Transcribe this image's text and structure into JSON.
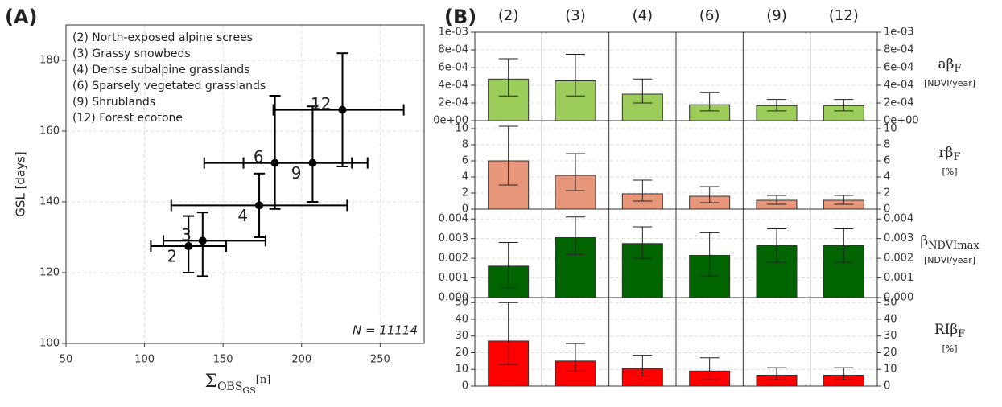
{
  "chart_data": [
    {
      "type": "errorscatter",
      "panel_label": "(A)",
      "y_label": "GSL [days]",
      "x_label_main": "Σ",
      "x_label_sub": "OBS",
      "x_label_subsub": "GS",
      "x_label_unit": "[n]",
      "xlim": [
        50,
        278
      ],
      "xticks": [
        50,
        100,
        150,
        200,
        250
      ],
      "ylim": [
        100,
        190
      ],
      "yticks": [
        100,
        120,
        140,
        160,
        180
      ],
      "grid": true,
      "color": "#000000",
      "legend": [
        "(2) North-exposed alpine screes",
        "(3) Grassy snowbeds",
        "(4) Dense subalpine grasslands",
        "(6) Sparsely vegetated grasslands",
        "(9) Shrublands",
        "(12) Forest ecotone"
      ],
      "annotation": "N = 11114",
      "points": [
        {
          "label": "2",
          "x": 128,
          "y": 127.5,
          "x_low": 104,
          "x_high": 152,
          "y_low": 120,
          "y_high": 136
        },
        {
          "label": "3",
          "x": 137,
          "y": 129,
          "x_low": 112,
          "x_high": 177,
          "y_low": 119,
          "y_high": 137
        },
        {
          "label": "4",
          "x": 173,
          "y": 139,
          "x_low": 117,
          "x_high": 229,
          "y_low": 130,
          "y_high": 148
        },
        {
          "label": "6",
          "x": 183,
          "y": 151,
          "x_low": 138,
          "x_high": 232,
          "y_low": 138,
          "y_high": 170
        },
        {
          "label": "9",
          "x": 207,
          "y": 151,
          "x_low": 163,
          "x_high": 242,
          "y_low": 140,
          "y_high": 167
        },
        {
          "label": "12",
          "x": 226,
          "y": 166,
          "x_low": 182,
          "x_high": 265,
          "y_low": 150,
          "y_high": 182
        }
      ]
    },
    {
      "type": "bargrid",
      "panel_label": "(B)",
      "categories": [
        "(2)",
        "(3)",
        "(4)",
        "(6)",
        "(9)",
        "(12)"
      ],
      "rows": [
        {
          "label": "aβ",
          "label_sub": "F",
          "unit": "[NDVI/year]",
          "color": "#9ccc5a",
          "values": [
            0.00047,
            0.00045,
            0.0003,
            0.00018,
            0.00017,
            0.00017
          ],
          "err_low": [
            0.00028,
            0.00028,
            0.0002,
            0.00011,
            0.00011,
            0.00011
          ],
          "err_high": [
            0.0007,
            0.00075,
            0.00047,
            0.00032,
            0.00024,
            0.00024
          ],
          "ylim": [
            0,
            0.001
          ],
          "yticks": [
            {
              "value": 0,
              "label": "0e+00"
            },
            {
              "value": 0.0002,
              "label": "2e-04"
            },
            {
              "value": 0.0004,
              "label": "4e-04"
            },
            {
              "value": 0.0006,
              "label": "6e-04"
            },
            {
              "value": 0.0008,
              "label": "8e-04"
            },
            {
              "value": 0.001,
              "label": "1e-03"
            }
          ],
          "y2ticks": [
            {
              "value": 0,
              "label": "0e+00"
            },
            {
              "value": 0.0002,
              "label": "2e-04"
            },
            {
              "value": 0.0004,
              "label": "4e-04"
            },
            {
              "value": 0.0006,
              "label": "6e-04"
            },
            {
              "value": 0.0008,
              "label": "8e-04"
            },
            {
              "value": 0.001,
              "label": "1e-03"
            }
          ]
        },
        {
          "label": "rβ",
          "label_sub": "F",
          "unit": "[%]",
          "color": "#e8967a",
          "values": [
            6,
            4.2,
            1.9,
            1.6,
            1.1,
            1.1
          ],
          "err_low": [
            3,
            2.3,
            1,
            0.8,
            0.6,
            0.6
          ],
          "err_high": [
            10.3,
            6.9,
            3.6,
            2.8,
            1.7,
            1.7
          ],
          "ylim": [
            0,
            11
          ],
          "yticks": [
            0,
            2,
            4,
            6,
            8,
            10
          ],
          "y2ticks": [
            0,
            2,
            4,
            6,
            8,
            10
          ]
        },
        {
          "label": "β",
          "label_sub": "NDVImax",
          "unit": "[NDVI/year]",
          "color": "#006400",
          "values": [
            0.0016,
            0.00305,
            0.00275,
            0.00215,
            0.00265,
            0.00265
          ],
          "err_low": [
            0.0005,
            0.0022,
            0.002,
            0.0011,
            0.0018,
            0.0018
          ],
          "err_high": [
            0.0028,
            0.0041,
            0.0036,
            0.0033,
            0.0035,
            0.0035
          ],
          "ylim": [
            0,
            0.0045
          ],
          "yticks": [
            {
              "value": 0,
              "label": "0.000"
            },
            {
              "value": 0.001,
              "label": "0.001"
            },
            {
              "value": 0.002,
              "label": "0.002"
            },
            {
              "value": 0.003,
              "label": "0.003"
            },
            {
              "value": 0.004,
              "label": "0.004"
            }
          ],
          "y2ticks": [
            {
              "value": 0,
              "label": "0.000"
            },
            {
              "value": 0.001,
              "label": "0.001"
            },
            {
              "value": 0.002,
              "label": "0.002"
            },
            {
              "value": 0.003,
              "label": "0.003"
            },
            {
              "value": 0.004,
              "label": "0.004"
            }
          ]
        },
        {
          "label": "RIβ",
          "label_sub": "F",
          "unit": "[%]",
          "color": "#ff0000",
          "values": [
            27,
            15,
            10.5,
            9,
            6.5,
            6.5
          ],
          "err_low": [
            13,
            9,
            6,
            4,
            4,
            4
          ],
          "err_high": [
            50,
            25.5,
            18.5,
            17,
            11,
            11
          ],
          "ylim": [
            0,
            53
          ],
          "yticks": [
            0,
            10,
            20,
            30,
            40,
            50
          ],
          "y2ticks": [
            0,
            10,
            20,
            30,
            40,
            50
          ]
        }
      ]
    }
  ]
}
